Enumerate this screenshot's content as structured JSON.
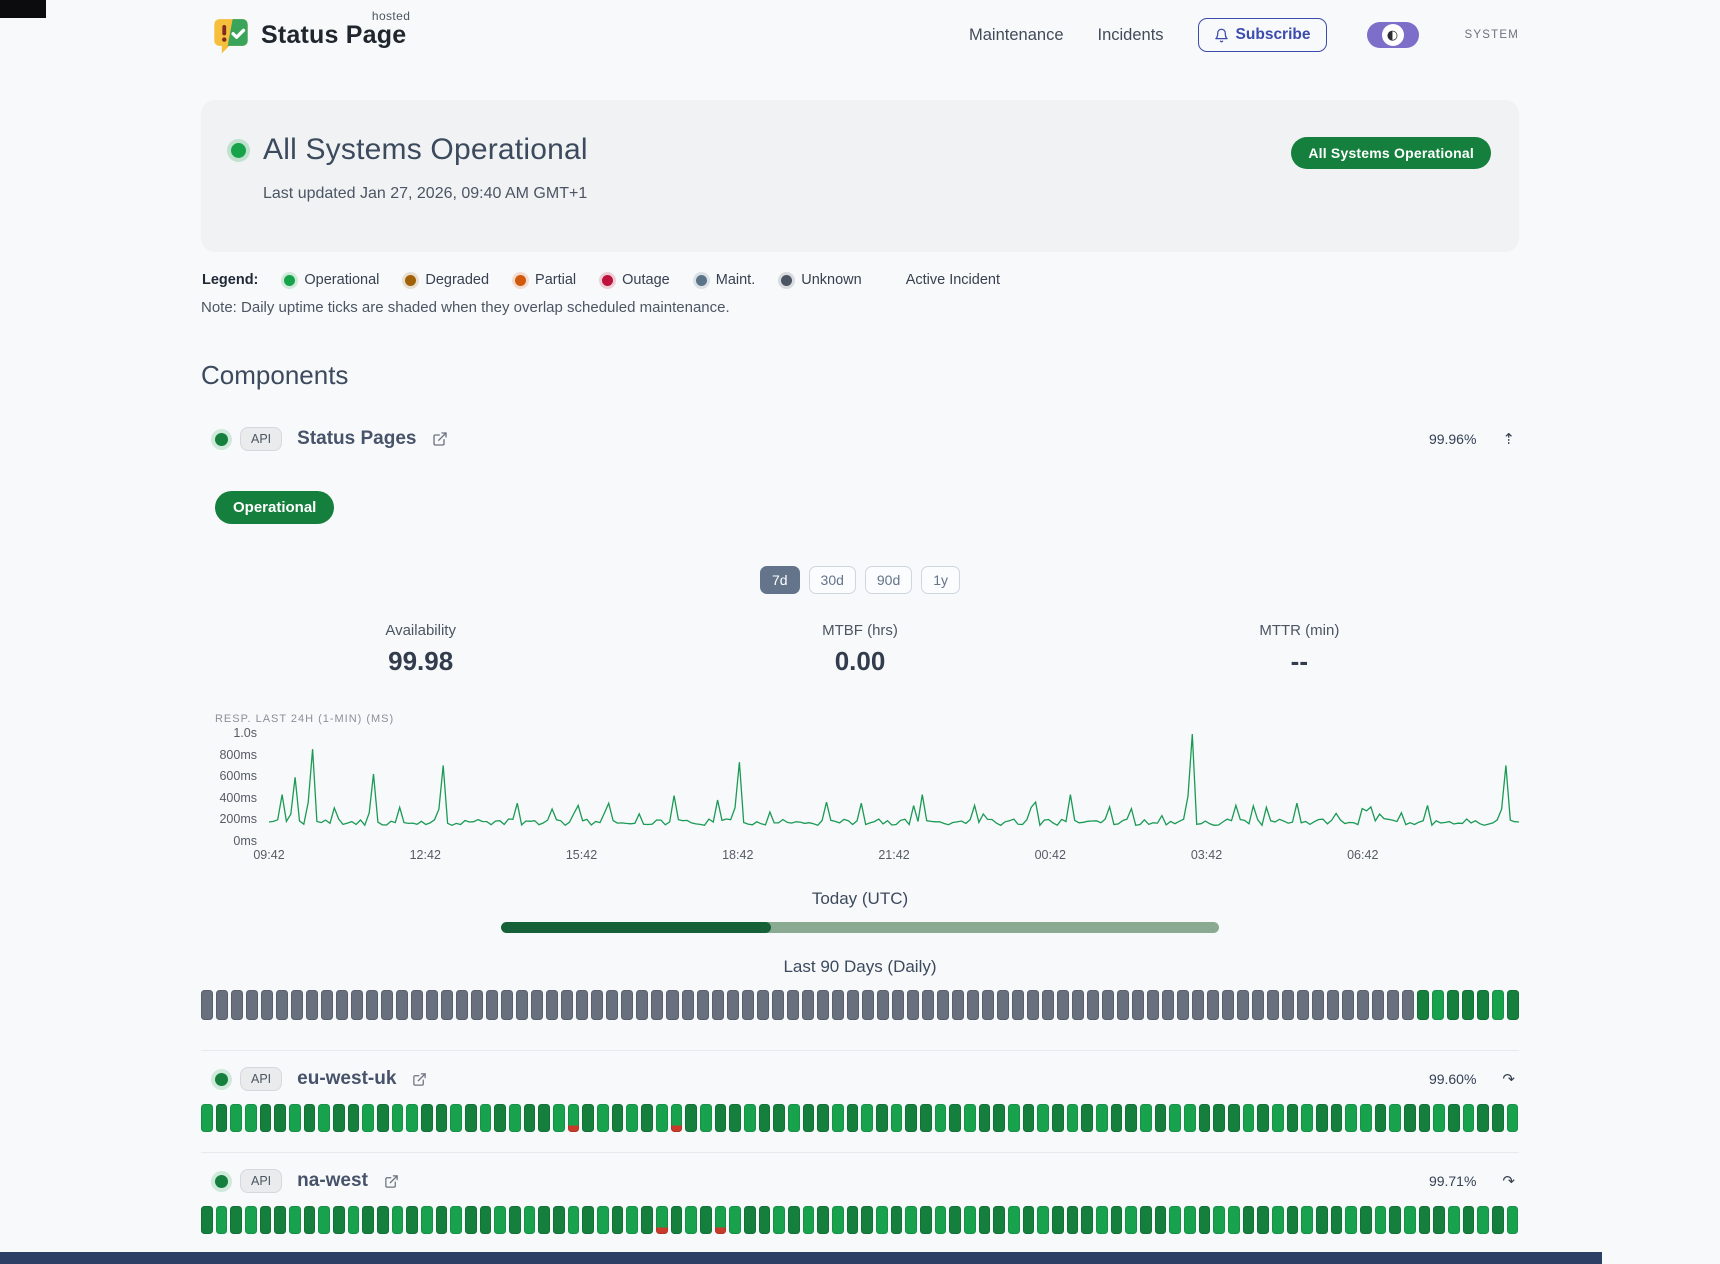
{
  "header": {
    "brand": {
      "name": "Status Page",
      "superscript": "hosted"
    },
    "nav": [
      {
        "label": "Maintenance"
      },
      {
        "label": "Incidents"
      }
    ],
    "subscribe_label": "Subscribe",
    "theme_label": "SYSTEM"
  },
  "icons": {
    "collapse": "⇡",
    "expand": "↷",
    "contrast": "◐"
  },
  "hero": {
    "title": "All Systems Operational",
    "last_updated": "Last updated Jan 27, 2026, 09:40 AM GMT+1",
    "badge": "All Systems Operational",
    "badge_color": "#15803d"
  },
  "legend": {
    "label": "Legend:",
    "items": [
      {
        "label": "Operational",
        "color": "#16a34a"
      },
      {
        "label": "Degraded",
        "color": "#a16207"
      },
      {
        "label": "Partial",
        "color": "#d2580a"
      },
      {
        "label": "Outage",
        "color": "#be123c"
      },
      {
        "label": "Maint.",
        "color": "#5b7389"
      },
      {
        "label": "Unknown",
        "color": "#4b5563"
      }
    ],
    "active_incident_label": "Active Incident",
    "note": "Note: Daily uptime ticks are shaded when they overlap scheduled maintenance."
  },
  "components": {
    "heading": "Components",
    "expanded": {
      "tag": "API",
      "name": "Status Pages",
      "uptime": "99.96%",
      "status_badge": "Operational",
      "ranges": [
        "7d",
        "30d",
        "90d",
        "1y"
      ],
      "selected_range": "7d",
      "metrics": [
        {
          "label": "Availability",
          "value": "99.98"
        },
        {
          "label": "MTBF (hrs)",
          "value": "0.00"
        },
        {
          "label": "MTTR (min)",
          "value": "--"
        }
      ],
      "chart": {
        "type": "line",
        "title": "RESP. LAST 24H (1-MIN) (MS)",
        "x_tick_labels": [
          "09:42",
          "12:42",
          "15:42",
          "18:42",
          "21:42",
          "00:42",
          "03:42",
          "06:42"
        ],
        "y_tick_labels": [
          "1.0s",
          "800ms",
          "600ms",
          "400ms",
          "200ms",
          "0ms"
        ],
        "ylim": [
          0,
          1000
        ],
        "baseline_ms": [
          145,
          205
        ],
        "color": "#1a9a55",
        "samples": 288,
        "seed": 11,
        "spikes": [
          [
            0.01,
            430
          ],
          [
            0.022,
            590
          ],
          [
            0.036,
            850
          ],
          [
            0.084,
            620
          ],
          [
            0.14,
            700
          ],
          [
            0.199,
            350
          ],
          [
            0.249,
            330
          ],
          [
            0.271,
            350
          ],
          [
            0.324,
            420
          ],
          [
            0.359,
            380
          ],
          [
            0.378,
            730
          ],
          [
            0.447,
            360
          ],
          [
            0.473,
            350
          ],
          [
            0.522,
            430
          ],
          [
            0.566,
            330
          ],
          [
            0.614,
            360
          ],
          [
            0.64,
            430
          ],
          [
            0.689,
            300
          ],
          [
            0.737,
            990
          ],
          [
            0.772,
            330
          ],
          [
            0.821,
            350
          ],
          [
            0.873,
            300
          ],
          [
            0.926,
            330
          ],
          [
            0.99,
            700
          ]
        ]
      },
      "today": {
        "label": "Today (UTC)",
        "percent": 37.6
      },
      "history": {
        "label": "Last 90 Days (Daily)",
        "ticks": "gggggggggggggggggggggggggggggggggggggggggggggggggggggggggggggggggggggggggggggggggGmGGGmG"
      }
    },
    "rows": [
      {
        "tag": "API",
        "name": "eu-west-uk",
        "uptime": "99.60%",
        "ticks": "mGmmGGmGmGGmGmmGGmGmGmGGmpGmGmGmpGmGGmGGmGGmGmGmGGmGmGGmGmGmGmGGmGmmGGGmGmGmGGmmGmGGmGmGGm"
      },
      {
        "tag": "API",
        "name": "na-west",
        "uptime": "99.71%",
        "ticks": "GmGmGGmGmGmGGmGmGmGGmGmGGmGmGmGpGmGpmGGmGmGmGGmGmGmGmGGmGmGGGmGmGGmmGmmGGmGmGGmGmGmGGmGmGm"
      }
    ]
  }
}
